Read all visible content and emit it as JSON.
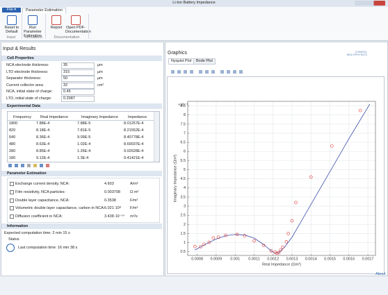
{
  "window": {
    "title": "Li-Ion Battery Impedance"
  },
  "ribbon": {
    "file": "File ▾",
    "tab": "Parameter Estimation",
    "buttons": [
      "Reset to Default",
      "Run Parameter Estimation",
      "Report",
      "Open PDF-Documentation"
    ],
    "groups": [
      "Input",
      "Simulation",
      "Documentation"
    ]
  },
  "input_results": {
    "title": "Input & Results",
    "cell_properties": {
      "title": "Cell Properties",
      "rows": [
        {
          "label": "NCA electrode thickness:",
          "value": "35",
          "unit": "µm"
        },
        {
          "label": "LTO electrode thickness:",
          "value": "315",
          "unit": "µm"
        },
        {
          "label": "Separator thickness:",
          "value": "50",
          "unit": "µm"
        },
        {
          "label": "Current collector area",
          "value": "32",
          "unit": "cm²"
        },
        {
          "label": "NCA, initial state of charge:",
          "value": "0.45"
        },
        {
          "label": "LTO, initial state of charge:",
          "value": "0.2987"
        }
      ]
    },
    "experimental_data": {
      "title": "Experimental Data",
      "columns": [
        "Frequency",
        "Real Impedance",
        "Imaginary Impedance",
        "Impedance"
      ],
      "rows": [
        [
          "1800",
          "7.88E-4",
          "7.88E-5",
          "8.01257E-4"
        ],
        [
          "820",
          "8.18E-4",
          "7.81E-5",
          "8.21552E-4"
        ],
        [
          "640",
          "8.36E-4",
          "9.09E-5",
          "8.40778E-4"
        ],
        [
          "480",
          "8.63E-4",
          "1.02E-4",
          "8.69037E-4"
        ],
        [
          "280",
          "8.85E-4",
          "1.26E-4",
          "9.02628E-4"
        ],
        [
          "180",
          "9.12E-4",
          "1.3E-4",
          "9.41421E-4"
        ]
      ]
    },
    "parameter_estimation": {
      "title": "Parameter Estimation",
      "rows": [
        {
          "label": "Exchange current density, NCA:",
          "value": "4.603",
          "unit": "A/m²"
        },
        {
          "label": "Film resistivity, NCA particles:",
          "value": "0.003708",
          "unit": "Ω·m²"
        },
        {
          "label": "Double layer capacitance, NCA:",
          "value": "0.3538",
          "unit": "F/m²"
        },
        {
          "label": "Volumetric double layer capacitance, carbon in NCA:",
          "value": "6.021·10⁸",
          "unit": "F/m³"
        },
        {
          "label": "Diffusion coefficient in NCA:",
          "value": "3.438·10⁻¹⁴",
          "unit": "m²/s"
        }
      ]
    },
    "information": {
      "title": "Information",
      "expected": "Expected computation time:  2 min 15 s",
      "status": "Status",
      "last": "Last computation time: 16 min 38 s"
    }
  },
  "graphics": {
    "title": "Graphics",
    "logo": "COMSOL MULTIPHYSICS",
    "tabs": [
      "Nyquist Plot",
      "Bode Plot"
    ]
  },
  "chart_data": {
    "type": "scatter",
    "y_multiplier": "×10⁻⁴",
    "x_label": "Real Impedance (Ωm²)",
    "y_label": "Imaginary Impedance (Ωm²)",
    "xlim": [
      0.00075,
      0.00174
    ],
    "ylim": [
      0.3,
      8.75
    ],
    "xticks": [
      0.0008,
      0.0009,
      0.001,
      0.0011,
      0.0012,
      0.0013,
      0.0014,
      0.0015,
      0.0016,
      0.0017
    ],
    "yticks": [
      0.5,
      1,
      1.5,
      2,
      2.5,
      3,
      3.5,
      4,
      4.5,
      5,
      5.5,
      6,
      6.5,
      7,
      7.5,
      8,
      8.5
    ],
    "grid": true,
    "series": [
      {
        "type": "line",
        "color": "#3a4ea8",
        "x": [
          0.000788,
          0.00085,
          0.0009,
          0.00095,
          0.001,
          0.00105,
          0.0011,
          0.00115,
          0.00119,
          0.00121,
          0.00123,
          0.00126,
          0.0013,
          0.00135,
          0.0014,
          0.0015,
          0.0016,
          0.00171
        ],
        "values": [
          0.6,
          0.95,
          1.2,
          1.38,
          1.45,
          1.42,
          1.25,
          0.9,
          0.55,
          0.42,
          0.45,
          0.75,
          1.3,
          2.2,
          3.1,
          4.9,
          6.7,
          8.6
        ]
      },
      {
        "type": "scatter",
        "color": "#e03030",
        "x": [
          0.000788,
          0.000818,
          0.000836,
          0.000863,
          0.000885,
          0.000912,
          0.00095,
          0.00101,
          0.00105,
          0.0011,
          0.00115,
          0.00119,
          0.00121,
          0.00122,
          0.00123,
          0.00124,
          0.00125,
          0.00127,
          0.00128,
          0.0013,
          0.00132,
          0.0014,
          0.00151,
          0.00166
        ],
        "values": [
          0.788,
          0.781,
          0.909,
          1.02,
          1.26,
          1.3,
          1.4,
          1.45,
          1.38,
          1.1,
          0.85,
          0.55,
          0.48,
          0.42,
          0.45,
          0.6,
          0.75,
          1.05,
          1.5,
          2.2,
          3.2,
          4.6,
          6.3,
          8.25
        ]
      }
    ]
  },
  "status_bar": {
    "about": "About"
  }
}
